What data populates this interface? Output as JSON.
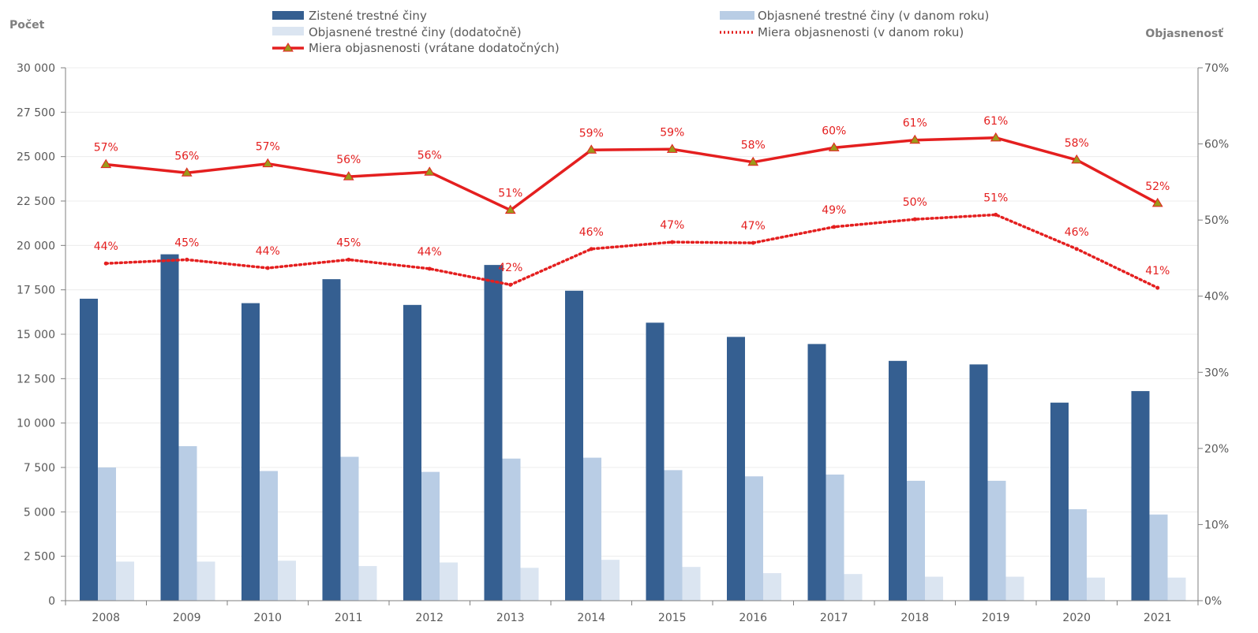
{
  "chart_data": {
    "type": "bar",
    "left_axis_title": "Počet",
    "right_axis_title": "Objasnenosť",
    "categories": [
      "2008",
      "2009",
      "2010",
      "2011",
      "2012",
      "2013",
      "2014",
      "2015",
      "2016",
      "2017",
      "2018",
      "2019",
      "2020",
      "2021"
    ],
    "ylim": [
      0,
      30000
    ],
    "y_ticks": [
      "0",
      "2 500",
      "5 000",
      "7 500",
      "10 000",
      "12 500",
      "15 000",
      "17 500",
      "20 000",
      "22 500",
      "25 000",
      "27 500",
      "30 000"
    ],
    "y2lim": [
      0,
      70
    ],
    "y2_ticks": [
      "0%",
      "10%",
      "20%",
      "30%",
      "40%",
      "50%",
      "60%",
      "70%"
    ],
    "bar_series": [
      {
        "name": "Zistené trestné činy",
        "color": "#355f91",
        "values": [
          17000,
          19500,
          16750,
          18100,
          16650,
          18900,
          17450,
          15650,
          14850,
          14450,
          13500,
          13300,
          11150,
          11800
        ]
      },
      {
        "name": "Objasnené trestné činy (v danom roku)",
        "color": "#b9cde5",
        "values": [
          7500,
          8700,
          7300,
          8100,
          7250,
          8000,
          8050,
          7350,
          7000,
          7100,
          6750,
          6750,
          5150,
          4850
        ]
      },
      {
        "name": "Objasnené trestné činy (dodatočně)",
        "color": "#dbe5f1",
        "values": [
          2200,
          2200,
          2250,
          1950,
          2150,
          1850,
          2300,
          1900,
          1550,
          1500,
          1350,
          1350,
          1300,
          1300
        ]
      }
    ],
    "line_series": [
      {
        "name": "Miera objasnenosti (v danom roku)",
        "color": "#e41f1f",
        "style": "dotted",
        "values": [
          44.3,
          44.8,
          43.7,
          44.8,
          43.6,
          41.5,
          46.2,
          47.1,
          47.0,
          49.1,
          50.1,
          50.7,
          46.2,
          41.1
        ],
        "labels": [
          "44%",
          "45%",
          "44%",
          "45%",
          "44%",
          "42%",
          "46%",
          "47%",
          "47%",
          "49%",
          "50%",
          "51%",
          "46%",
          "41%"
        ]
      },
      {
        "name": "Miera objasnenosti (vrátane dodatočných)",
        "color": "#e41f1f",
        "style": "solid-triangle",
        "values": [
          57.3,
          56.2,
          57.4,
          55.7,
          56.3,
          51.3,
          59.2,
          59.3,
          57.6,
          59.5,
          60.5,
          60.8,
          57.9,
          52.2
        ],
        "labels": [
          "57%",
          "56%",
          "57%",
          "56%",
          "56%",
          "51%",
          "59%",
          "59%",
          "58%",
          "60%",
          "61%",
          "61%",
          "58%",
          "52%"
        ]
      }
    ],
    "grid": true,
    "legend_position": "top"
  }
}
